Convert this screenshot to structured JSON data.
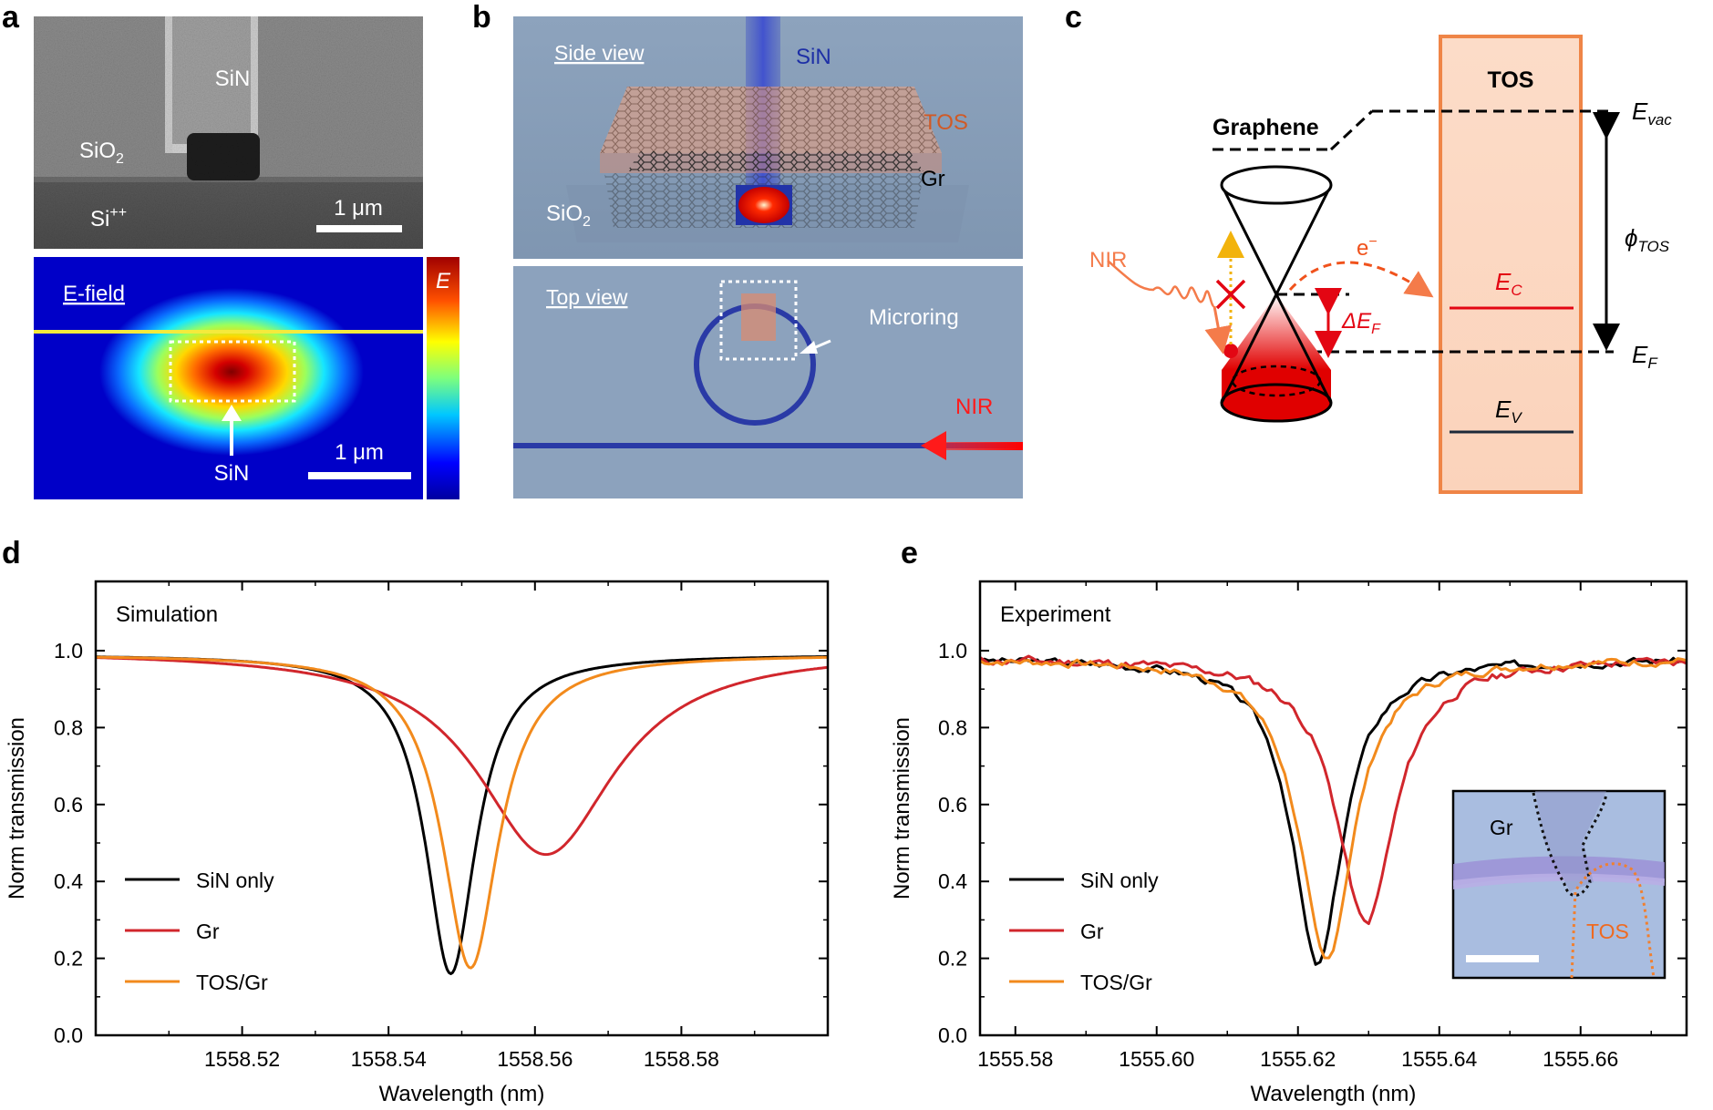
{
  "panel_letters": {
    "a": "a",
    "b": "b",
    "c": "c",
    "d": "d",
    "e": "e"
  },
  "panel_a": {
    "sem": {
      "sin": "SiN",
      "sio2": "SiO",
      "sio2_sub": "2",
      "si": "Si",
      "si_sup": "++",
      "scale": "1 μm"
    },
    "efield": {
      "title": "E-field",
      "label": "SiN",
      "scale": "1 μm",
      "colorbar_label": "E"
    }
  },
  "panel_b": {
    "side": {
      "title": "Side view",
      "sin": "SiN",
      "tos": "TOS",
      "gr": "Gr",
      "sio2": "SiO",
      "sio2_sub": "2"
    },
    "top": {
      "title": "Top view",
      "microring": "Microring",
      "nir": "NIR"
    }
  },
  "panel_c": {
    "graphene": "Graphene",
    "tos": "TOS",
    "nir": "NIR",
    "electron": "e",
    "evac": "E",
    "evac_sub": "vac",
    "phi": "ϕ",
    "phi_sub": "TOS",
    "ec": "E",
    "ec_sub": "C",
    "ev": "E",
    "ev_sub": "V",
    "ef": "E",
    "ef_sub": "F",
    "def": "ΔE",
    "def_sub": "F"
  },
  "colors": {
    "black": "#000000",
    "red": "#d1262c",
    "orange": "#f28a1c",
    "tos_fill": "#fbd9c2",
    "tos_edge": "#ef8547",
    "accent_red": "#e30613"
  },
  "chart_data": [
    {
      "type": "line",
      "panel": "d",
      "title": "Simulation",
      "xlabel": "Wavelength (nm)",
      "ylabel": "Norm transmission",
      "xlim": [
        1558.5,
        1558.6
      ],
      "ylim": [
        0.0,
        1.18
      ],
      "xticks": [
        "1558.52",
        "1558.54",
        "1558.56",
        "1558.58"
      ],
      "xtick_values": [
        1558.52,
        1558.54,
        1558.56,
        1558.58
      ],
      "yticks": [
        "0.0",
        "0.2",
        "0.4",
        "0.6",
        "0.8",
        "1.0"
      ],
      "ytick_values": [
        0.0,
        0.2,
        0.4,
        0.6,
        0.8,
        1.0
      ],
      "legend": [
        "SiN only",
        "Gr",
        "TOS/Gr"
      ],
      "series": [
        {
          "name": "SiN only",
          "color": "#000000",
          "model": "lorentzian",
          "center": 1558.5485,
          "depth": 0.83,
          "hwhm": 0.0042,
          "base": 0.99
        },
        {
          "name": "Gr",
          "color": "#d1262c",
          "model": "lorentzian",
          "center": 1558.5615,
          "depth": 0.53,
          "hwhm": 0.0115,
          "base": 1.0
        },
        {
          "name": "TOS/Gr",
          "color": "#f28a1c",
          "model": "lorentzian",
          "center": 1558.5512,
          "depth": 0.815,
          "hwhm": 0.0047,
          "base": 0.99
        }
      ]
    },
    {
      "type": "line",
      "panel": "e",
      "title": "Experiment",
      "xlabel": "Wavelength (nm)",
      "ylabel": "Norm transmission",
      "xlim": [
        1555.575,
        1555.675
      ],
      "ylim": [
        0.0,
        1.18
      ],
      "xticks": [
        "1555.58",
        "1555.60",
        "1555.62",
        "1555.64",
        "1555.66"
      ],
      "xtick_values": [
        1555.58,
        1555.6,
        1555.62,
        1555.64,
        1555.66
      ],
      "yticks": [
        "0.0",
        "0.2",
        "0.4",
        "0.6",
        "0.8",
        "1.0"
      ],
      "ytick_values": [
        0.0,
        0.2,
        0.4,
        0.6,
        0.8,
        1.0
      ],
      "legend": [
        "SiN only",
        "Gr",
        "TOS/Gr"
      ],
      "inset_labels": {
        "gr": "Gr",
        "tos": "TOS"
      },
      "series": [
        {
          "name": "SiN only",
          "color": "#000000",
          "model": "lorentzian",
          "center": 1555.6228,
          "depth": 0.8,
          "hwhm": 0.0043,
          "base": 0.98,
          "noise": 0.008,
          "seed": 3
        },
        {
          "name": "Gr",
          "color": "#d1262c",
          "model": "lorentzian",
          "center": 1555.6296,
          "depth": 0.69,
          "hwhm": 0.005,
          "base": 0.98,
          "noise": 0.009,
          "seed": 11
        },
        {
          "name": "TOS/Gr",
          "color": "#f28a1c",
          "model": "lorentzian",
          "center": 1555.624,
          "depth": 0.79,
          "hwhm": 0.0046,
          "base": 0.98,
          "noise": 0.008,
          "seed": 7
        }
      ]
    }
  ]
}
